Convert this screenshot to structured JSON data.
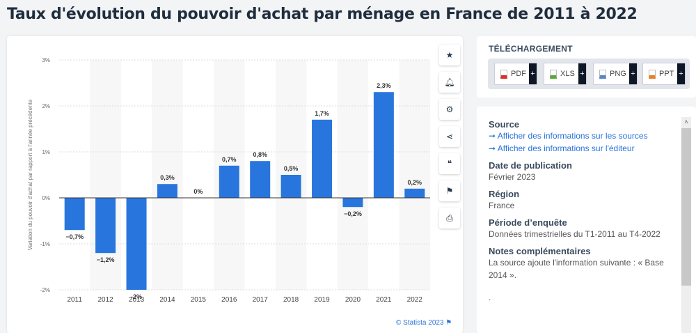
{
  "title": "Taux d'évolution du pouvoir d'achat par ménage en France de 2011 à 2022",
  "chart_data": {
    "type": "bar",
    "categories": [
      "2011",
      "2012",
      "2013",
      "2014",
      "2015",
      "2016",
      "2017",
      "2018",
      "2019",
      "2020",
      "2021",
      "2022"
    ],
    "values": [
      -0.7,
      -1.2,
      -2,
      0.3,
      0,
      0.7,
      0.8,
      0.5,
      1.7,
      -0.2,
      2.3,
      0.2
    ],
    "data_labels": [
      "−0,7%",
      "−1,2%",
      "-2%",
      "0,3%",
      "0%",
      "0,7%",
      "0,8%",
      "0,5%",
      "1,7%",
      "−0,2%",
      "2,3%",
      "0,2%"
    ],
    "ylabel": "Variation du pouvoir d'achat par rapport à l'année précédente",
    "ylim": [
      -2,
      3
    ],
    "yticks": [
      3,
      2,
      1,
      0,
      -1,
      -2
    ],
    "ytick_labels": [
      "3%",
      "2%",
      "1%",
      "0%",
      "-1%",
      "-2%"
    ],
    "grid": true,
    "bar_color": "#2876dd"
  },
  "credit": "© Statista 2023",
  "tools": [
    "star-icon",
    "bell-icon",
    "gear-icon",
    "share-icon",
    "quote-icon",
    "flag-icon",
    "print-icon"
  ],
  "download": {
    "title": "TÉLÉCHARGEMENT",
    "buttons": [
      {
        "label": "PDF",
        "color": "#d9302c"
      },
      {
        "label": "XLS",
        "color": "#5aa83a"
      },
      {
        "label": "PNG",
        "color": "#5a86c8"
      },
      {
        "label": "PPT",
        "color": "#e8802a"
      }
    ],
    "plus": "+"
  },
  "info": {
    "source_h": "Source",
    "link1": "Afficher des informations sur les sources",
    "link2": "Afficher des informations sur l'éditeur",
    "date_h": "Date de publication",
    "date": "Février 2023",
    "region_h": "Région",
    "region": "France",
    "period_h": "Période d’enquête",
    "period": "Données trimestrielles du T1-2011 au T4-2022",
    "notes_h": "Notes complémentaires",
    "notes": "La source ajoute l'information suivante : « Base 2014 ».",
    "dot": "."
  }
}
